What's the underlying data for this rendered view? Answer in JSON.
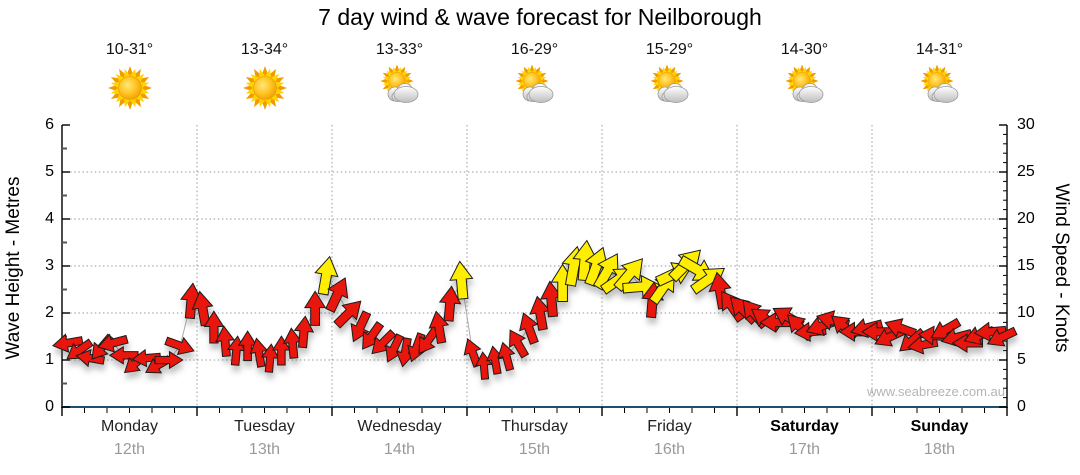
{
  "title": "7 day wind & wave forecast for Neilborough",
  "watermark": "www.seabreeze.com.au",
  "left_axis": {
    "label": "Wave Height - Metres",
    "ticks": [
      0,
      1,
      2,
      3,
      4,
      5,
      6
    ]
  },
  "right_axis": {
    "label": "Wind Speed - Knots",
    "ticks": [
      0,
      5,
      10,
      15,
      20,
      25,
      30
    ]
  },
  "days": [
    {
      "name": "Monday",
      "date": "12th",
      "temp": "10-31°",
      "icon": "sunny",
      "bold": false
    },
    {
      "name": "Tuesday",
      "date": "13th",
      "temp": "13-34°",
      "icon": "sunny",
      "bold": false
    },
    {
      "name": "Wednesday",
      "date": "14th",
      "temp": "13-33°",
      "icon": "partly-cloudy",
      "bold": false
    },
    {
      "name": "Thursday",
      "date": "15th",
      "temp": "16-29°",
      "icon": "partly-cloudy",
      "bold": false
    },
    {
      "name": "Friday",
      "date": "16th",
      "temp": "15-29°",
      "icon": "partly-cloudy",
      "bold": false
    },
    {
      "name": "Saturday",
      "date": "17th",
      "temp": "14-30°",
      "icon": "partly-cloudy",
      "bold": true
    },
    {
      "name": "Sunday",
      "date": "18th",
      "temp": "14-31°",
      "icon": "partly-cloudy",
      "bold": true
    }
  ],
  "colors": {
    "arrow_light": "#e81309",
    "arrow_moderate": "#ffee00",
    "arrow_outline": "#1a1a1a",
    "x_axis": "#1f4e6e",
    "grid": "#999999",
    "trace_line": "#aaaaaa"
  },
  "chart_data": {
    "type": "line",
    "title": "7 day wind & wave forecast for Neilborough",
    "ylabel_left": "Wave Height - Metres",
    "ylabel_right": "Wind Speed - Knots",
    "ylim_metres": [
      0,
      6
    ],
    "ylim_knots": [
      0,
      30
    ],
    "grid": true,
    "points_per_day": 12,
    "arrow_deg_convention": "0=up,90=right,180=down,270=left (direction arrow points on screen)",
    "color_key": {
      "r": "red = lighter wind",
      "y": "yellow = moderate wind"
    },
    "wind_knots": [
      {
        "day": "Monday",
        "kn": [
          6.8,
          6.0,
          5.2,
          6.3,
          6.8,
          5.5,
          4.6,
          5.2,
          4.4,
          5.0,
          6.5,
          11.3
        ],
        "deg": [
          260,
          235,
          280,
          220,
          255,
          270,
          230,
          265,
          240,
          90,
          110,
          5
        ],
        "col": [
          "r",
          "r",
          "r",
          "r",
          "r",
          "r",
          "r",
          "r",
          "r",
          "r",
          "r",
          "r"
        ]
      },
      {
        "day": "Tuesday",
        "kn": [
          10.5,
          8.5,
          7.0,
          6.0,
          6.5,
          5.8,
          5.2,
          6.0,
          6.8,
          8.0,
          10.5,
          14.0
        ],
        "deg": [
          350,
          0,
          355,
          5,
          0,
          350,
          5,
          0,
          355,
          5,
          0,
          10
        ],
        "col": [
          "r",
          "r",
          "r",
          "r",
          "r",
          "r",
          "r",
          "r",
          "r",
          "r",
          "r",
          "y"
        ]
      },
      {
        "day": "Wednesday",
        "kn": [
          12.0,
          10.0,
          8.5,
          7.5,
          6.8,
          6.2,
          5.8,
          6.3,
          7.0,
          8.5,
          11.0,
          13.5
        ],
        "deg": [
          25,
          45,
          205,
          215,
          225,
          205,
          190,
          200,
          215,
          350,
          5,
          355
        ],
        "col": [
          "r",
          "r",
          "r",
          "r",
          "r",
          "r",
          "r",
          "r",
          "r",
          "r",
          "r",
          "y"
        ]
      },
      {
        "day": "Thursday",
        "kn": [
          5.8,
          4.4,
          5.0,
          5.4,
          6.8,
          8.4,
          10.0,
          11.5,
          13.2,
          15.0,
          15.6,
          15.0
        ],
        "deg": [
          340,
          355,
          350,
          345,
          330,
          340,
          350,
          355,
          0,
          10,
          5,
          20
        ],
        "col": [
          "r",
          "r",
          "r",
          "r",
          "r",
          "r",
          "r",
          "r",
          "y",
          "y",
          "y",
          "y"
        ]
      },
      {
        "day": "Friday",
        "kn": [
          14.5,
          13.6,
          14.2,
          12.8,
          11.4,
          12.8,
          14.2,
          15.2,
          14.6,
          13.6,
          12.4,
          10.8
        ],
        "deg": [
          30,
          55,
          40,
          85,
          5,
          35,
          65,
          45,
          120,
          55,
          350,
          325
        ],
        "col": [
          "y",
          "y",
          "y",
          "y",
          "r",
          "y",
          "y",
          "y",
          "y",
          "y",
          "r",
          "r"
        ]
      },
      {
        "day": "Saturday",
        "kn": [
          10.4,
          10.0,
          9.4,
          9.0,
          9.6,
          8.6,
          8.0,
          8.6,
          9.2,
          8.6,
          8.0,
          8.4
        ],
        "deg": [
          315,
          320,
          305,
          270,
          300,
          315,
          265,
          250,
          285,
          310,
          270,
          255
        ],
        "col": [
          "r",
          "r",
          "r",
          "r",
          "r",
          "r",
          "r",
          "r",
          "r",
          "r",
          "r",
          "r"
        ]
      },
      {
        "day": "Sunday",
        "kn": [
          8.0,
          7.4,
          8.4,
          7.0,
          6.6,
          7.6,
          8.2,
          7.4,
          6.8,
          7.6,
          8.0,
          7.4
        ],
        "deg": [
          270,
          245,
          290,
          230,
          260,
          275,
          240,
          255,
          270,
          250,
          265,
          245
        ],
        "col": [
          "r",
          "r",
          "r",
          "r",
          "r",
          "r",
          "r",
          "r",
          "r",
          "r",
          "r",
          "r"
        ]
      }
    ]
  }
}
